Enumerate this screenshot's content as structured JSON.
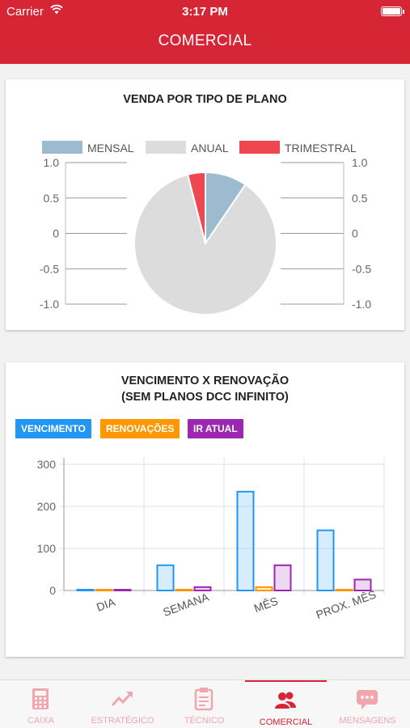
{
  "status": {
    "carrier": "Carrier",
    "time": "3:17 PM"
  },
  "header": {
    "title": "COMERCIAL"
  },
  "card1": {
    "title": "VENDA POR TIPO DE PLANO",
    "chart_data": {
      "type": "pie",
      "title": "VENDA POR TIPO DE PLANO",
      "series": [
        {
          "name": "MENSAL",
          "value": 9.5,
          "color": "#9dbbcf"
        },
        {
          "name": "ANUAL",
          "value": 86.5,
          "color": "#dcdcdc"
        },
        {
          "name": "TRIMESTRAL",
          "value": 4.0,
          "color": "#ef4650"
        }
      ],
      "legend_position": "top",
      "y_ticks": [
        "1.0",
        "0.5",
        "0",
        "-0.5",
        "-1.0"
      ]
    }
  },
  "card2": {
    "title_line1": "VENCIMENTO X RENOVAÇÃO",
    "title_line2": "(SEM PLANOS DCC INFINITO)",
    "chart_data": {
      "type": "bar",
      "title": "VENCIMENTO X RENOVAÇÃO (SEM PLANOS DCC INFINITO)",
      "categories": [
        "DIA",
        "SEMANA",
        "MÊS",
        "PROX. MÊS"
      ],
      "series": [
        {
          "name": "VENCIMENTO",
          "color": "#2196f3",
          "values": [
            0,
            60,
            235,
            143
          ]
        },
        {
          "name": "RENOVAÇÕES",
          "color": "#ff9800",
          "values": [
            0,
            0,
            8,
            0
          ]
        },
        {
          "name": "IR ATUAL",
          "color": "#9c27b0",
          "values": [
            0,
            8,
            60,
            26
          ]
        }
      ],
      "ylim": [
        0,
        300
      ],
      "y_ticks": [
        0,
        100,
        200,
        300
      ],
      "legend_position": "top-left",
      "grid": true
    }
  },
  "tabs": [
    {
      "label": "CAIXA",
      "icon": "calculator-icon",
      "active": false
    },
    {
      "label": "ESTRATÉGICO",
      "icon": "trend-up-icon",
      "active": false
    },
    {
      "label": "TÉCNICO",
      "icon": "clipboard-icon",
      "active": false
    },
    {
      "label": "COMERCIAL",
      "icon": "users-icon",
      "active": true
    },
    {
      "label": "MENSAGENS",
      "icon": "chat-icon",
      "active": false
    }
  ]
}
